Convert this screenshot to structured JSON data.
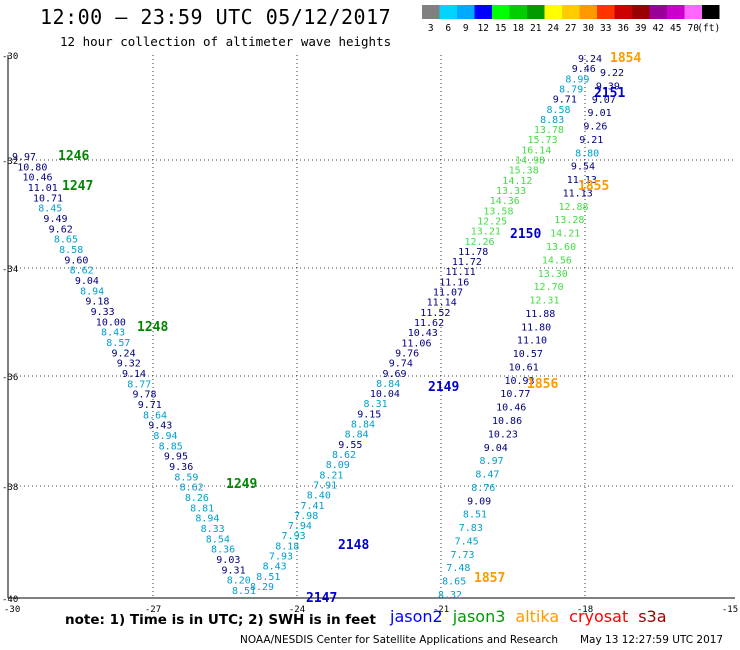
{
  "header": {
    "title": "12:00 – 23:59 UTC 05/12/2017",
    "subtitle": "12 hour collection of altimeter wave heights"
  },
  "colorbar": {
    "colors": [
      "#808080",
      "#00d4ff",
      "#00aaff",
      "#0000ff",
      "#00ff00",
      "#00cc00",
      "#009900",
      "#ffff00",
      "#ffcc00",
      "#ff9900",
      "#ff3300",
      "#cc0000",
      "#990000",
      "#990099",
      "#cc00cc",
      "#ff66ff",
      "#000000"
    ],
    "labels": [
      "3",
      "6",
      "9",
      "12",
      "15",
      "18",
      "21",
      "24",
      "27",
      "30",
      "33",
      "36",
      "39",
      "42",
      "45",
      "70",
      "(ft)"
    ]
  },
  "map": {
    "lat_labels": [
      "-30",
      "-32",
      "-34",
      "-36",
      "-38",
      "-40"
    ],
    "lon_labels": [
      "-30",
      "-27",
      "-24",
      "-21",
      "-18",
      "-15"
    ],
    "track_colors": {
      "jason2": "#0000cc",
      "jason3": "#009900",
      "altika": "#ff9900",
      "cryosat": "#ff0000",
      "s3a": "#990000",
      "teal": "#00a0cc",
      "light": "#44dd44",
      "dark": "#000080"
    }
  },
  "track_times": [
    {
      "label": "1246",
      "sat": "jason3"
    },
    {
      "label": "1247",
      "sat": "jason3"
    },
    {
      "label": "1248",
      "sat": "jason3"
    },
    {
      "label": "1249",
      "sat": "jason3"
    },
    {
      "label": "2147",
      "sat": "jason2"
    },
    {
      "label": "2148",
      "sat": "jason2"
    },
    {
      "label": "2149",
      "sat": "jason2"
    },
    {
      "label": "2150",
      "sat": "jason2"
    },
    {
      "label": "2151",
      "sat": "jason2"
    },
    {
      "label": "1854",
      "sat": "altika"
    },
    {
      "label": "1855",
      "sat": "altika"
    },
    {
      "label": "1856",
      "sat": "altika"
    },
    {
      "label": "1857",
      "sat": "altika"
    }
  ],
  "tracks": {
    "left": [
      "9.97",
      "10.80",
      "10.46",
      "11.01",
      "10.71",
      "8.45",
      "9.49",
      "9.62",
      "8.65",
      "8.58",
      "9.60",
      "8.62",
      "9.04",
      "8.94",
      "9.18",
      "9.33",
      "10.00",
      "8.43",
      "8.57",
      "9.24",
      "9.32",
      "9.14",
      "8.77",
      "9.78",
      "9.71",
      "8.64",
      "9.43",
      "8.94",
      "8.85",
      "9.95",
      "9.36",
      "8.59",
      "8.62",
      "8.26",
      "8.81",
      "8.94",
      "8.33",
      "8.54",
      "8.36",
      "9.03",
      "9.31",
      "8.20",
      "8.51"
    ],
    "middle": [
      "8.29",
      "8.51",
      "8.43",
      "7.93",
      "8.18",
      "7.93",
      "7.94",
      "7.98",
      "7.41",
      "8.40",
      "7.91",
      "8.21",
      "8.09",
      "8.62",
      "9.55",
      "8.84",
      "8.84",
      "9.15",
      "8.31",
      "10.04",
      "8.84",
      "9.69",
      "9.74",
      "9.76",
      "11.06",
      "10.43",
      "11.62",
      "11.52",
      "11.14",
      "11.07",
      "11.16",
      "11.11",
      "11.72",
      "11.78",
      "12.26",
      "13.21",
      "12.25",
      "13.58",
      "14.36",
      "13.33",
      "14.12",
      "15.38",
      "14.98",
      "16.14",
      "15.73",
      "13.78",
      "8.83",
      "8.58",
      "9.71",
      "8.79",
      "8.99",
      "9.46",
      "9.24"
    ],
    "right": [
      "8.32",
      "8.65",
      "7.48",
      "7.73",
      "7.45",
      "7.83",
      "8.51",
      "9.09",
      "8.76",
      "8.47",
      "8.97",
      "9.04",
      "10.23",
      "10.86",
      "10.46",
      "10.77",
      "10.93",
      "10.61",
      "10.57",
      "11.10",
      "11.80",
      "11.88",
      "12.31",
      "12.70",
      "13.30",
      "14.56",
      "13.60",
      "14.21",
      "13.28",
      "12.88",
      "11.13",
      "11.13",
      "9.54",
      "8.80",
      "9.21",
      "9.26",
      "9.01",
      "9.07",
      "9.39",
      "9.22"
    ]
  },
  "note": "note:  1) Time is in UTC;  2) SWH is in feet",
  "legend": [
    {
      "name": "jason2",
      "color": "#0000ff"
    },
    {
      "name": "jason3",
      "color": "#009900"
    },
    {
      "name": "altika",
      "color": "#ff9900"
    },
    {
      "name": "cryosat",
      "color": "#ff0000"
    },
    {
      "name": "s3a",
      "color": "#990000"
    }
  ],
  "footer": {
    "source": "NOAA/NESDIS Center for Satellite Applications and Research",
    "time": "May 13 12:27:59 UTC 2017"
  }
}
